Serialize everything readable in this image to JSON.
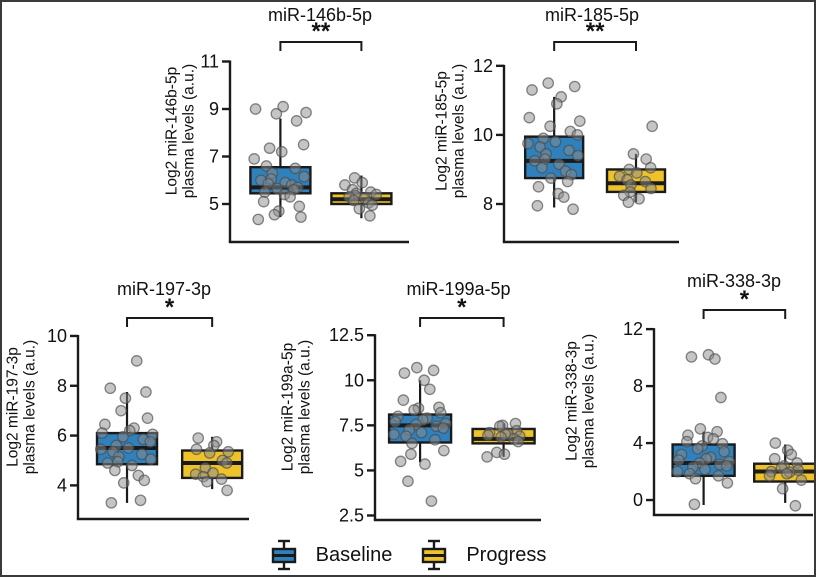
{
  "figure": {
    "legend": [
      {
        "label": "Baseline",
        "color": "#2E81BC"
      },
      {
        "label": "Progress",
        "color": "#EEC32A"
      }
    ],
    "style": {
      "axis_color": "#1a1a1a",
      "point_fill": "#8c8c8c",
      "point_stroke": "#4a4a4a"
    }
  },
  "chart_data": [
    {
      "type": "boxplot",
      "title": "miR-146b-5p",
      "ylabel_line1": "Log2 miR-146b-5p",
      "ylabel_line2": "plasma levels (a.u.)",
      "significance": "**",
      "ylim": [
        3.4,
        11.4
      ],
      "yticks": [
        5,
        7,
        9,
        11
      ],
      "groups": [
        {
          "name": "Baseline",
          "whisker_low": 4.45,
          "q1": 5.45,
          "median": 5.7,
          "q3": 6.55,
          "whisker_high": 8.6,
          "points": [
            9.1,
            9.0,
            8.85,
            8.8,
            8.5,
            7.5,
            7.35,
            7.2,
            6.9,
            6.6,
            6.5,
            6.3,
            6.15,
            6.05,
            6.0,
            5.9,
            5.85,
            5.8,
            5.7,
            5.65,
            5.6,
            5.5,
            5.4,
            5.3,
            5.1,
            4.9,
            4.7,
            4.55,
            4.45,
            4.35
          ]
        },
        {
          "name": "Progress",
          "whisker_low": 4.4,
          "q1": 5.0,
          "median": 5.2,
          "q3": 5.45,
          "whisker_high": 6.2,
          "points": [
            6.1,
            5.9,
            5.8,
            5.6,
            5.5,
            5.45,
            5.4,
            5.35,
            5.3,
            5.25,
            5.15,
            5.05,
            4.95,
            4.8,
            4.5
          ]
        }
      ]
    },
    {
      "type": "boxplot",
      "title": "miR-185-5p",
      "ylabel_line1": "Log2 miR-185-5p",
      "ylabel_line2": "plasma levels (a.u.)",
      "significance": "**",
      "ylim": [
        6.9,
        12.4
      ],
      "yticks": [
        8,
        10,
        12
      ],
      "groups": [
        {
          "name": "Baseline",
          "whisker_low": 7.9,
          "q1": 8.75,
          "median": 9.25,
          "q3": 9.95,
          "whisker_high": 11.1,
          "points": [
            11.5,
            11.4,
            11.3,
            11.1,
            10.9,
            10.5,
            10.4,
            10.25,
            10.1,
            10.0,
            9.9,
            9.8,
            9.75,
            9.65,
            9.55,
            9.45,
            9.4,
            9.3,
            9.25,
            9.15,
            9.05,
            8.95,
            8.85,
            8.75,
            8.65,
            8.5,
            8.3,
            8.2,
            7.95,
            7.85
          ]
        },
        {
          "name": "Progress",
          "whisker_low": 8.05,
          "q1": 8.35,
          "median": 8.6,
          "q3": 9.0,
          "whisker_high": 9.45,
          "points": [
            10.25,
            9.45,
            9.3,
            9.05,
            9.0,
            8.9,
            8.8,
            8.7,
            8.65,
            8.55,
            8.45,
            8.35,
            8.25,
            8.15,
            8.05
          ]
        }
      ]
    },
    {
      "type": "boxplot",
      "title": "miR-197-3p",
      "ylabel_line1": "Log2 miR-197-3p",
      "ylabel_line2": "plasma levels (a.u.)",
      "significance": "*",
      "ylim": [
        2.65,
        10.4
      ],
      "yticks": [
        4,
        6,
        8,
        10
      ],
      "groups": [
        {
          "name": "Baseline",
          "whisker_low": 3.3,
          "q1": 4.85,
          "median": 5.5,
          "q3": 6.1,
          "whisker_high": 7.75,
          "points": [
            9.0,
            7.9,
            7.75,
            7.5,
            7.0,
            6.7,
            6.45,
            6.3,
            6.2,
            6.1,
            6.05,
            5.95,
            5.85,
            5.75,
            5.6,
            5.5,
            5.45,
            5.35,
            5.25,
            5.15,
            5.05,
            4.95,
            4.9,
            4.8,
            4.6,
            4.4,
            4.2,
            4.1,
            3.4,
            3.3
          ]
        },
        {
          "name": "Progress",
          "whisker_low": 3.85,
          "q1": 4.3,
          "median": 4.9,
          "q3": 5.4,
          "whisker_high": 5.95,
          "points": [
            5.9,
            5.75,
            5.6,
            5.45,
            5.35,
            5.3,
            5.0,
            4.9,
            4.7,
            4.5,
            4.45,
            4.35,
            4.25,
            4.15,
            3.8
          ]
        }
      ]
    },
    {
      "type": "boxplot",
      "title": "miR-199a-5p",
      "ylabel_line1": "Log2 miR-199a-5p",
      "ylabel_line2": "plasma levels (a.u.)",
      "significance": "*",
      "ylim": [
        2.25,
        12.9
      ],
      "yticks": [
        2.5,
        5,
        7.5,
        10,
        12.5
      ],
      "groups": [
        {
          "name": "Baseline",
          "whisker_low": 5.45,
          "q1": 6.55,
          "median": 7.5,
          "q3": 8.1,
          "whisker_high": 10.0,
          "points": [
            10.7,
            10.55,
            10.4,
            10.0,
            9.5,
            8.9,
            8.5,
            8.45,
            8.35,
            8.2,
            8.0,
            7.9,
            7.8,
            7.7,
            7.6,
            7.55,
            7.45,
            7.35,
            7.25,
            7.1,
            7.0,
            6.9,
            6.7,
            6.5,
            6.1,
            5.9,
            5.5,
            5.35,
            4.4,
            3.3
          ]
        },
        {
          "name": "Progress",
          "whisker_low": 5.75,
          "q1": 6.5,
          "median": 6.75,
          "q3": 7.3,
          "whisker_high": 7.6,
          "points": [
            7.6,
            7.5,
            7.45,
            7.2,
            7.1,
            7.05,
            7.0,
            6.95,
            6.9,
            6.85,
            6.75,
            6.6,
            6.0,
            5.9,
            5.75
          ]
        }
      ]
    },
    {
      "type": "boxplot",
      "title": "miR-338-3p",
      "ylabel_line1": "Log2 miR-338-3p",
      "ylabel_line2": "plasma levels (a.u.)",
      "significance": "*",
      "ylim": [
        -1.05,
        12.5
      ],
      "yticks": [
        0,
        4,
        8,
        12
      ],
      "groups": [
        {
          "name": "Baseline",
          "whisker_low": -0.35,
          "q1": 1.7,
          "median": 2.6,
          "q3": 3.9,
          "whisker_high": 4.8,
          "points": [
            10.2,
            10.05,
            9.9,
            7.2,
            5.0,
            4.8,
            4.55,
            4.4,
            4.3,
            4.1,
            3.95,
            3.8,
            3.6,
            3.4,
            3.2,
            3.0,
            2.9,
            2.8,
            2.7,
            2.6,
            2.5,
            2.4,
            2.3,
            2.15,
            2.0,
            1.85,
            1.7,
            1.5,
            1.2,
            -0.3
          ]
        },
        {
          "name": "Progress",
          "whisker_low": -0.2,
          "q1": 1.3,
          "median": 2.0,
          "q3": 2.55,
          "whisker_high": 3.9,
          "points": [
            4.0,
            3.5,
            3.2,
            2.9,
            2.6,
            2.4,
            2.25,
            2.1,
            2.0,
            1.95,
            1.85,
            1.7,
            1.4,
            0.8,
            -0.4
          ]
        }
      ]
    }
  ]
}
